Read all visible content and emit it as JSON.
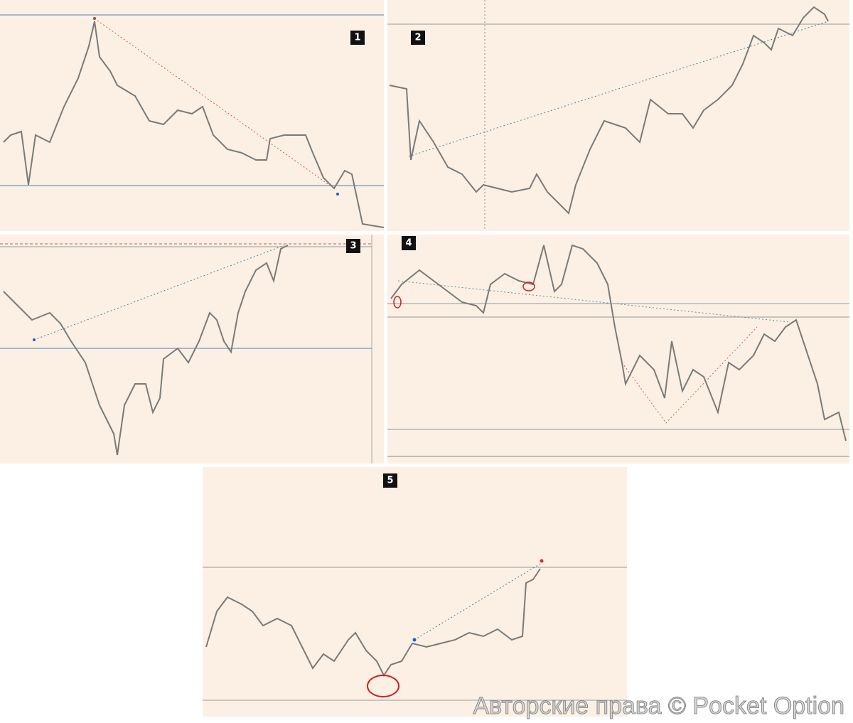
{
  "panels": [
    {
      "label": "1"
    },
    {
      "label": "2"
    },
    {
      "label": "3"
    },
    {
      "label": "4"
    },
    {
      "label": "5"
    }
  ],
  "watermark": "Авторские права © Pocket Option"
}
